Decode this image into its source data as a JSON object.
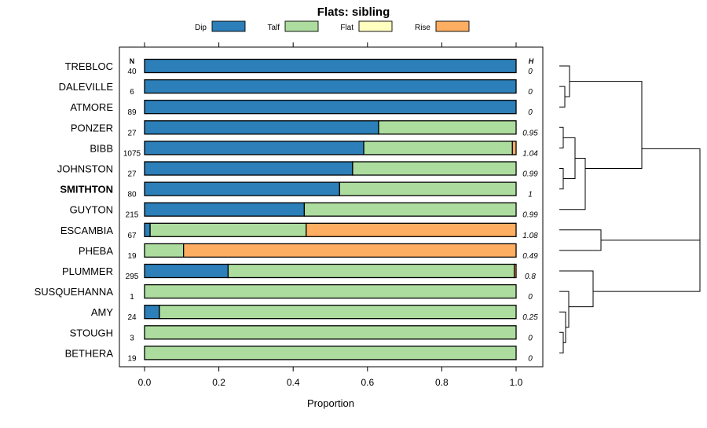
{
  "chart_data": {
    "type": "bar",
    "stacked": true,
    "orientation": "horizontal",
    "title": "Flats: sibling",
    "xlabel": "Proportion",
    "ylabel": "",
    "xlim": [
      0,
      1
    ],
    "xticks": [
      "0.0",
      "0.2",
      "0.4",
      "0.6",
      "0.8",
      "1.0"
    ],
    "legend_position": "top",
    "n_header": "N",
    "h_header": "H",
    "highlighted_category": "SMITHTON",
    "series": [
      {
        "name": "Dip",
        "color": "#2c7fb8"
      },
      {
        "name": "Talf",
        "color": "#addd9e"
      },
      {
        "name": "Flat",
        "color": "#ffffbf"
      },
      {
        "name": "Rise",
        "color": "#fdae61"
      }
    ],
    "rows": [
      {
        "label": "TREBLOC",
        "n": "40",
        "h": "0",
        "values": [
          1.0,
          0.0,
          0.0,
          0.0
        ]
      },
      {
        "label": "DALEVILLE",
        "n": "6",
        "h": "0",
        "values": [
          1.0,
          0.0,
          0.0,
          0.0
        ]
      },
      {
        "label": "ATMORE",
        "n": "89",
        "h": "0",
        "values": [
          1.0,
          0.0,
          0.0,
          0.0
        ]
      },
      {
        "label": "PONZER",
        "n": "27",
        "h": "0.95",
        "values": [
          0.63,
          0.37,
          0.0,
          0.0
        ]
      },
      {
        "label": "BIBB",
        "n": "1075",
        "h": "1.04",
        "values": [
          0.59,
          0.4,
          0.0,
          0.01
        ]
      },
      {
        "label": "JOHNSTON",
        "n": "27",
        "h": "0.99",
        "values": [
          0.56,
          0.44,
          0.0,
          0.0
        ]
      },
      {
        "label": "SMITHTON",
        "n": "80",
        "h": "1",
        "values": [
          0.525,
          0.475,
          0.0,
          0.0
        ]
      },
      {
        "label": "GUYTON",
        "n": "215",
        "h": "0.99",
        "values": [
          0.43,
          0.57,
          0.0,
          0.0
        ]
      },
      {
        "label": "ESCAMBIA",
        "n": "67",
        "h": "1.08",
        "values": [
          0.015,
          0.42,
          0.0,
          0.565
        ]
      },
      {
        "label": "PHEBA",
        "n": "19",
        "h": "0.49",
        "values": [
          0.0,
          0.105,
          0.0,
          0.895
        ]
      },
      {
        "label": "PLUMMER",
        "n": "295",
        "h": "0.8",
        "values": [
          0.225,
          0.77,
          0.0,
          0.005
        ]
      },
      {
        "label": "SUSQUEHANNA",
        "n": "1",
        "h": "0",
        "values": [
          0.0,
          1.0,
          0.0,
          0.0
        ]
      },
      {
        "label": "AMY",
        "n": "24",
        "h": "0.25",
        "values": [
          0.04,
          0.96,
          0.0,
          0.0
        ]
      },
      {
        "label": "STOUGH",
        "n": "3",
        "h": "0",
        "values": [
          0.0,
          1.0,
          0.0,
          0.0
        ]
      },
      {
        "label": "BETHERA",
        "n": "19",
        "h": "0",
        "values": [
          0.0,
          1.0,
          0.0,
          0.0
        ]
      }
    ]
  }
}
